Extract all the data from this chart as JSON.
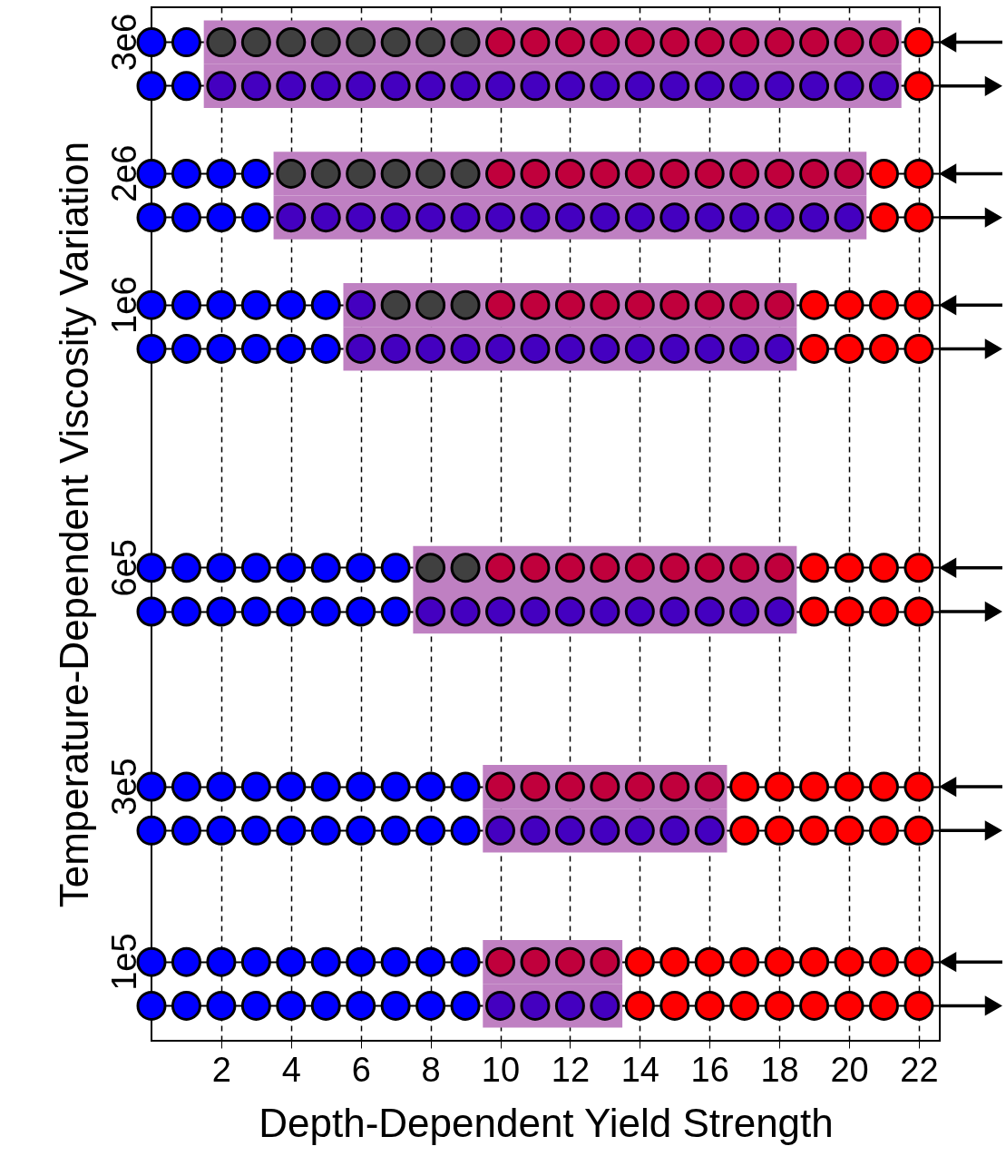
{
  "chart_data": {
    "type": "scatter",
    "orientation": "horizontal",
    "xlabel": "Depth-Dependent Yield Strength",
    "ylabel": "Temperature-Dependent Viscosity Variation",
    "categories": [
      "3e6",
      null,
      null,
      "2e6",
      null,
      null,
      "1e6",
      null,
      null,
      null,
      null,
      null,
      "6e5",
      null,
      null,
      null,
      null,
      "3e5",
      null,
      null,
      null,
      "1e5",
      null
    ],
    "xlim": [
      0,
      22.6
    ],
    "xticks": [
      2,
      4,
      6,
      8,
      10,
      12,
      14,
      16,
      18,
      20,
      22
    ],
    "grid": true,
    "marker": "circle",
    "series": [
      {
        "type": "bar",
        "color": "#bf80c2",
        "base": [
          1.5,
          1.5,
          null,
          3.5,
          3.5,
          null,
          5.5,
          5.5,
          null,
          null,
          null,
          null,
          7.5,
          7.5,
          null,
          null,
          null,
          9.5,
          9.5,
          null,
          null,
          9.5,
          9.5
        ],
        "values": [
          20,
          20,
          null,
          17,
          17,
          null,
          13,
          13,
          null,
          null,
          null,
          null,
          11,
          11,
          null,
          null,
          null,
          7,
          7,
          null,
          null,
          4,
          4
        ]
      },
      {
        "values": [
          0,
          0,
          null,
          0,
          0,
          null,
          0,
          0,
          null,
          null,
          null,
          null,
          0,
          0,
          null,
          null,
          null,
          0,
          0,
          null,
          null,
          0,
          0
        ],
        "colors": [
          "#0000ff",
          "#0000ff",
          null,
          "#0000ff",
          "#0000ff",
          null,
          "#0000ff",
          "#0000ff",
          null,
          null,
          null,
          null,
          "#0000ff",
          "#0000ff",
          null,
          null,
          null,
          "#0000ff",
          "#0000ff",
          null,
          null,
          "#0000ff",
          "#0000ff"
        ]
      },
      {
        "values": [
          1,
          1,
          null,
          1,
          1,
          null,
          1,
          1,
          null,
          null,
          null,
          null,
          1,
          1,
          null,
          null,
          null,
          1,
          1,
          null,
          null,
          1,
          1
        ],
        "colors": [
          "#0000ff",
          "#0000ff",
          null,
          "#0000ff",
          "#0000ff",
          null,
          "#0000ff",
          "#0000ff",
          null,
          null,
          null,
          null,
          "#0000ff",
          "#0000ff",
          null,
          null,
          null,
          "#0000ff",
          "#0000ff",
          null,
          null,
          "#0000ff",
          "#0000ff"
        ]
      },
      {
        "values": [
          2,
          2,
          null,
          2,
          2,
          null,
          2,
          2,
          null,
          null,
          null,
          null,
          2,
          2,
          null,
          null,
          null,
          2,
          2,
          null,
          null,
          2,
          2
        ],
        "colors": [
          "#404040",
          "#4400c0",
          null,
          "#0000ff",
          "#0000ff",
          null,
          "#0000ff",
          "#0000ff",
          null,
          null,
          null,
          null,
          "#0000ff",
          "#0000ff",
          null,
          null,
          null,
          "#0000ff",
          "#0000ff",
          null,
          null,
          "#0000ff",
          "#0000ff"
        ]
      },
      {
        "values": [
          3,
          3,
          null,
          3,
          3,
          null,
          3,
          3,
          null,
          null,
          null,
          null,
          3,
          3,
          null,
          null,
          null,
          3,
          3,
          null,
          null,
          3,
          3
        ],
        "colors": [
          "#404040",
          "#4400c0",
          null,
          "#0000ff",
          "#0000ff",
          null,
          "#0000ff",
          "#0000ff",
          null,
          null,
          null,
          null,
          "#0000ff",
          "#0000ff",
          null,
          null,
          null,
          "#0000ff",
          "#0000ff",
          null,
          null,
          "#0000ff",
          "#0000ff"
        ]
      },
      {
        "values": [
          4,
          4,
          null,
          4,
          4,
          null,
          4,
          4,
          null,
          null,
          null,
          null,
          4,
          4,
          null,
          null,
          null,
          4,
          4,
          null,
          null,
          4,
          4
        ],
        "colors": [
          "#404040",
          "#4400c0",
          null,
          "#404040",
          "#4400c0",
          null,
          "#0000ff",
          "#0000ff",
          null,
          null,
          null,
          null,
          "#0000ff",
          "#0000ff",
          null,
          null,
          null,
          "#0000ff",
          "#0000ff",
          null,
          null,
          "#0000ff",
          "#0000ff"
        ]
      },
      {
        "values": [
          5,
          5,
          null,
          5,
          5,
          null,
          5,
          5,
          null,
          null,
          null,
          null,
          5,
          5,
          null,
          null,
          null,
          5,
          5,
          null,
          null,
          5,
          5
        ],
        "colors": [
          "#404040",
          "#4400c0",
          null,
          "#404040",
          "#4400c0",
          null,
          "#0000ff",
          "#0000ff",
          null,
          null,
          null,
          null,
          "#0000ff",
          "#0000ff",
          null,
          null,
          null,
          "#0000ff",
          "#0000ff",
          null,
          null,
          "#0000ff",
          "#0000ff"
        ]
      },
      {
        "values": [
          6,
          6,
          null,
          6,
          6,
          null,
          6,
          6,
          null,
          null,
          null,
          null,
          6,
          6,
          null,
          null,
          null,
          6,
          6,
          null,
          null,
          6,
          6
        ],
        "colors": [
          "#404040",
          "#4400c0",
          null,
          "#404040",
          "#4400c0",
          null,
          "#4400c0",
          "#4400c0",
          null,
          null,
          null,
          null,
          "#0000ff",
          "#0000ff",
          null,
          null,
          null,
          "#0000ff",
          "#0000ff",
          null,
          null,
          "#0000ff",
          "#0000ff"
        ]
      },
      {
        "values": [
          7,
          7,
          null,
          7,
          7,
          null,
          7,
          7,
          null,
          null,
          null,
          null,
          7,
          7,
          null,
          null,
          null,
          7,
          7,
          null,
          null,
          7,
          7
        ],
        "colors": [
          "#404040",
          "#4400c0",
          null,
          "#404040",
          "#4400c0",
          null,
          "#404040",
          "#4400c0",
          null,
          null,
          null,
          null,
          "#0000ff",
          "#0000ff",
          null,
          null,
          null,
          "#0000ff",
          "#0000ff",
          null,
          null,
          "#0000ff",
          "#0000ff"
        ]
      },
      {
        "values": [
          8,
          8,
          null,
          8,
          8,
          null,
          8,
          8,
          null,
          null,
          null,
          null,
          8,
          8,
          null,
          null,
          null,
          8,
          8,
          null,
          null,
          8,
          8
        ],
        "colors": [
          "#404040",
          "#4400c0",
          null,
          "#404040",
          "#4400c0",
          null,
          "#404040",
          "#4400c0",
          null,
          null,
          null,
          null,
          "#404040",
          "#4400c0",
          null,
          null,
          null,
          "#0000ff",
          "#0000ff",
          null,
          null,
          "#0000ff",
          "#0000ff"
        ]
      },
      {
        "values": [
          9,
          9,
          null,
          9,
          9,
          null,
          9,
          9,
          null,
          null,
          null,
          null,
          9,
          9,
          null,
          null,
          null,
          9,
          9,
          null,
          null,
          9,
          9
        ],
        "colors": [
          "#404040",
          "#4400c0",
          null,
          "#404040",
          "#4400c0",
          null,
          "#404040",
          "#4400c0",
          null,
          null,
          null,
          null,
          "#404040",
          "#4400c0",
          null,
          null,
          null,
          "#0000ff",
          "#0000ff",
          null,
          null,
          "#0000ff",
          "#0000ff"
        ]
      },
      {
        "values": [
          10,
          10,
          null,
          10,
          10,
          null,
          10,
          10,
          null,
          null,
          null,
          null,
          10,
          10,
          null,
          null,
          null,
          10,
          10,
          null,
          null,
          10,
          10
        ],
        "colors": [
          "#c0003c",
          "#4400c0",
          null,
          "#c0003c",
          "#4400c0",
          null,
          "#c0003c",
          "#4400c0",
          null,
          null,
          null,
          null,
          "#c0003c",
          "#4400c0",
          null,
          null,
          null,
          "#c0003c",
          "#4400c0",
          null,
          null,
          "#c0003c",
          "#4400c0"
        ]
      },
      {
        "values": [
          11,
          11,
          null,
          11,
          11,
          null,
          11,
          11,
          null,
          null,
          null,
          null,
          11,
          11,
          null,
          null,
          null,
          11,
          11,
          null,
          null,
          11,
          11
        ],
        "colors": [
          "#c0003c",
          "#4400c0",
          null,
          "#c0003c",
          "#4400c0",
          null,
          "#c0003c",
          "#4400c0",
          null,
          null,
          null,
          null,
          "#c0003c",
          "#4400c0",
          null,
          null,
          null,
          "#c0003c",
          "#4400c0",
          null,
          null,
          "#c0003c",
          "#4400c0"
        ]
      },
      {
        "values": [
          12,
          12,
          null,
          12,
          12,
          null,
          12,
          12,
          null,
          null,
          null,
          null,
          12,
          12,
          null,
          null,
          null,
          12,
          12,
          null,
          null,
          12,
          12
        ],
        "colors": [
          "#c0003c",
          "#4400c0",
          null,
          "#c0003c",
          "#4400c0",
          null,
          "#c0003c",
          "#4400c0",
          null,
          null,
          null,
          null,
          "#c0003c",
          "#4400c0",
          null,
          null,
          null,
          "#c0003c",
          "#4400c0",
          null,
          null,
          "#c0003c",
          "#4400c0"
        ]
      },
      {
        "values": [
          13,
          13,
          null,
          13,
          13,
          null,
          13,
          13,
          null,
          null,
          null,
          null,
          13,
          13,
          null,
          null,
          null,
          13,
          13,
          null,
          null,
          13,
          13
        ],
        "colors": [
          "#c0003c",
          "#4400c0",
          null,
          "#c0003c",
          "#4400c0",
          null,
          "#c0003c",
          "#4400c0",
          null,
          null,
          null,
          null,
          "#c0003c",
          "#4400c0",
          null,
          null,
          null,
          "#c0003c",
          "#4400c0",
          null,
          null,
          "#c0003c",
          "#4400c0"
        ]
      },
      {
        "values": [
          14,
          14,
          null,
          14,
          14,
          null,
          14,
          14,
          null,
          null,
          null,
          null,
          14,
          14,
          null,
          null,
          null,
          14,
          14,
          null,
          null,
          14,
          14
        ],
        "colors": [
          "#c0003c",
          "#4400c0",
          null,
          "#c0003c",
          "#4400c0",
          null,
          "#c0003c",
          "#4400c0",
          null,
          null,
          null,
          null,
          "#c0003c",
          "#4400c0",
          null,
          null,
          null,
          "#c0003c",
          "#4400c0",
          null,
          null,
          "#ff0000",
          "#ff0000"
        ]
      },
      {
        "values": [
          15,
          15,
          null,
          15,
          15,
          null,
          15,
          15,
          null,
          null,
          null,
          null,
          15,
          15,
          null,
          null,
          null,
          15,
          15,
          null,
          null,
          15,
          15
        ],
        "colors": [
          "#c0003c",
          "#4400c0",
          null,
          "#c0003c",
          "#4400c0",
          null,
          "#c0003c",
          "#4400c0",
          null,
          null,
          null,
          null,
          "#c0003c",
          "#4400c0",
          null,
          null,
          null,
          "#c0003c",
          "#4400c0",
          null,
          null,
          "#ff0000",
          "#ff0000"
        ]
      },
      {
        "values": [
          16,
          16,
          null,
          16,
          16,
          null,
          16,
          16,
          null,
          null,
          null,
          null,
          16,
          16,
          null,
          null,
          null,
          16,
          16,
          null,
          null,
          16,
          16
        ],
        "colors": [
          "#c0003c",
          "#4400c0",
          null,
          "#c0003c",
          "#4400c0",
          null,
          "#c0003c",
          "#4400c0",
          null,
          null,
          null,
          null,
          "#c0003c",
          "#4400c0",
          null,
          null,
          null,
          "#c0003c",
          "#4400c0",
          null,
          null,
          "#ff0000",
          "#ff0000"
        ]
      },
      {
        "values": [
          17,
          17,
          null,
          17,
          17,
          null,
          17,
          17,
          null,
          null,
          null,
          null,
          17,
          17,
          null,
          null,
          null,
          17,
          17,
          null,
          null,
          17,
          17
        ],
        "colors": [
          "#c0003c",
          "#4400c0",
          null,
          "#c0003c",
          "#4400c0",
          null,
          "#c0003c",
          "#4400c0",
          null,
          null,
          null,
          null,
          "#c0003c",
          "#4400c0",
          null,
          null,
          null,
          "#ff0000",
          "#ff0000",
          null,
          null,
          "#ff0000",
          "#ff0000"
        ]
      },
      {
        "values": [
          18,
          18,
          null,
          18,
          18,
          null,
          18,
          18,
          null,
          null,
          null,
          null,
          18,
          18,
          null,
          null,
          null,
          18,
          18,
          null,
          null,
          18,
          18
        ],
        "colors": [
          "#c0003c",
          "#4400c0",
          null,
          "#c0003c",
          "#4400c0",
          null,
          "#c0003c",
          "#4400c0",
          null,
          null,
          null,
          null,
          "#c0003c",
          "#4400c0",
          null,
          null,
          null,
          "#ff0000",
          "#ff0000",
          null,
          null,
          "#ff0000",
          "#ff0000"
        ]
      },
      {
        "values": [
          19,
          19,
          null,
          19,
          19,
          null,
          19,
          19,
          null,
          null,
          null,
          null,
          19,
          19,
          null,
          null,
          null,
          19,
          19,
          null,
          null,
          19,
          19
        ],
        "colors": [
          "#c0003c",
          "#4400c0",
          null,
          "#c0003c",
          "#4400c0",
          null,
          "#ff0000",
          "#ff0000",
          null,
          null,
          null,
          null,
          "#ff0000",
          "#ff0000",
          null,
          null,
          null,
          "#ff0000",
          "#ff0000",
          null,
          null,
          "#ff0000",
          "#ff0000"
        ]
      },
      {
        "values": [
          20,
          20,
          null,
          20,
          20,
          null,
          20,
          20,
          null,
          null,
          null,
          null,
          20,
          20,
          null,
          null,
          null,
          20,
          20,
          null,
          null,
          20,
          20
        ],
        "colors": [
          "#c0003c",
          "#4400c0",
          null,
          "#c0003c",
          "#4400c0",
          null,
          "#ff0000",
          "#ff0000",
          null,
          null,
          null,
          null,
          "#ff0000",
          "#ff0000",
          null,
          null,
          null,
          "#ff0000",
          "#ff0000",
          null,
          null,
          "#ff0000",
          "#ff0000"
        ]
      },
      {
        "values": [
          21,
          21,
          null,
          21,
          21,
          null,
          21,
          21,
          null,
          null,
          null,
          null,
          21,
          21,
          null,
          null,
          null,
          21,
          21,
          null,
          null,
          21,
          21
        ],
        "colors": [
          "#c0003c",
          "#4400c0",
          null,
          "#ff0000",
          "#ff0000",
          null,
          "#ff0000",
          "#ff0000",
          null,
          null,
          null,
          null,
          "#ff0000",
          "#ff0000",
          null,
          null,
          null,
          "#ff0000",
          "#ff0000",
          null,
          null,
          "#ff0000",
          "#ff0000"
        ]
      },
      {
        "values": [
          22,
          22,
          null,
          22,
          22,
          null,
          22,
          22,
          null,
          null,
          null,
          null,
          22,
          22,
          null,
          null,
          null,
          22,
          22,
          null,
          null,
          22,
          22
        ],
        "colors": [
          "#ff0000",
          "#ff0000",
          null,
          "#ff0000",
          "#ff0000",
          null,
          "#ff0000",
          "#ff0000",
          null,
          null,
          null,
          null,
          "#ff0000",
          "#ff0000",
          null,
          null,
          null,
          "#ff0000",
          "#ff0000",
          null,
          null,
          "#ff0000",
          "#ff0000"
        ]
      }
    ]
  }
}
